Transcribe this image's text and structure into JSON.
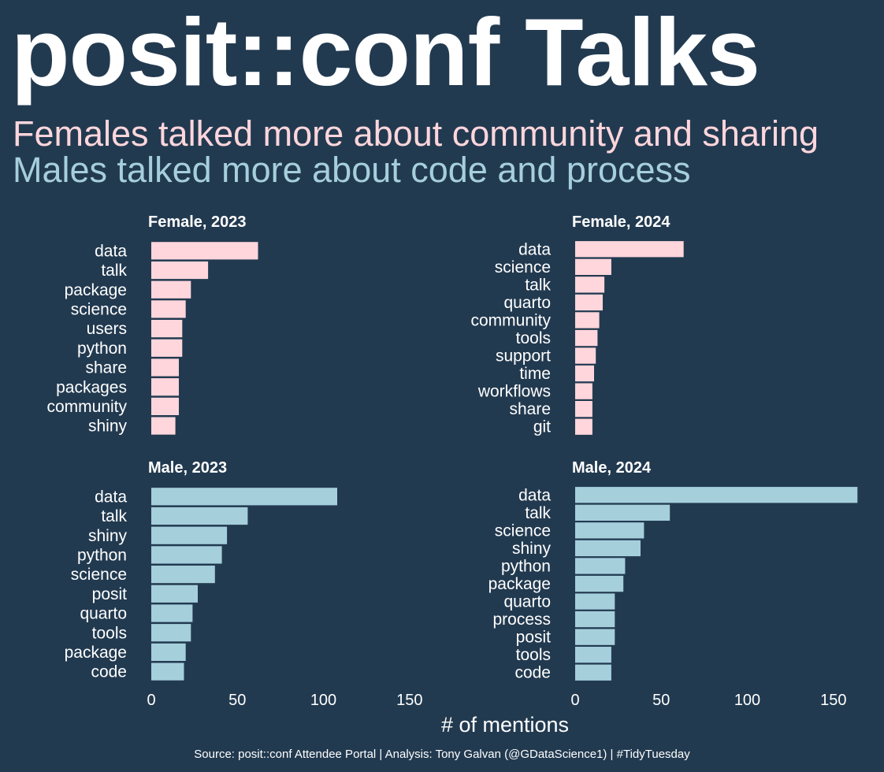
{
  "title": "posit::conf Talks",
  "subtitle_female": "Females talked more about community and sharing",
  "subtitle_male": "Males talked more about code and process",
  "caption": "Source: posit::conf Attendee Portal  |  Analysis: Tony Galvan (@GDataScience1)  |  #TidyTuesday",
  "colors": {
    "background": "#223a50",
    "female": "#ffd6dc",
    "male": "#a6cfdc",
    "text": "#ffffff"
  },
  "chart_data": {
    "type": "bar",
    "orientation": "horizontal",
    "xlabel": "# of mentions",
    "xlim": [
      0,
      165
    ],
    "x_ticks": [
      0,
      50,
      100,
      150
    ],
    "grid": false,
    "facets": [
      {
        "title": "Female, 2023",
        "categories": [
          "data",
          "talk",
          "package",
          "science",
          "users",
          "python",
          "share",
          "packages",
          "community",
          "shiny"
        ],
        "values": [
          62,
          33,
          23,
          20,
          18,
          18,
          16,
          16,
          16,
          14
        ]
      },
      {
        "title": "Female, 2024",
        "categories": [
          "data",
          "science",
          "talk",
          "quarto",
          "community",
          "tools",
          "support",
          "time",
          "workflows",
          "share",
          "git"
        ],
        "values": [
          63,
          21,
          17,
          16,
          14,
          13,
          12,
          11,
          10,
          10,
          10
        ]
      },
      {
        "title": "Male, 2023",
        "categories": [
          "data",
          "talk",
          "shiny",
          "python",
          "science",
          "posit",
          "quarto",
          "tools",
          "package",
          "code"
        ],
        "values": [
          108,
          56,
          44,
          41,
          37,
          27,
          24,
          23,
          20,
          19
        ]
      },
      {
        "title": "Male, 2024",
        "categories": [
          "data",
          "talk",
          "science",
          "shiny",
          "python",
          "package",
          "quarto",
          "process",
          "posit",
          "tools",
          "code"
        ],
        "values": [
          164,
          55,
          40,
          38,
          29,
          28,
          23,
          23,
          23,
          21,
          21
        ]
      }
    ]
  }
}
